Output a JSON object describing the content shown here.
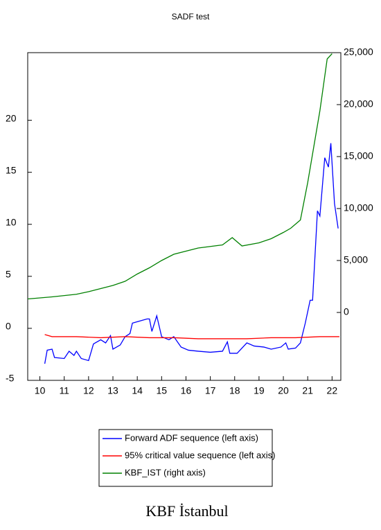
{
  "chart_data": {
    "type": "line",
    "title": "SADF test",
    "caption": "KBF İstanbul",
    "xlim": [
      2010,
      2022.86
    ],
    "xticks": [
      {
        "value": 2010.5,
        "label": "10"
      },
      {
        "value": 2011.5,
        "label": "11"
      },
      {
        "value": 2012.5,
        "label": "12"
      },
      {
        "value": 2013.5,
        "label": "13"
      },
      {
        "value": 2014.5,
        "label": "14"
      },
      {
        "value": 2015.5,
        "label": "15"
      },
      {
        "value": 2016.5,
        "label": "16"
      },
      {
        "value": 2017.5,
        "label": "17"
      },
      {
        "value": 2018.5,
        "label": "18"
      },
      {
        "value": 2019.5,
        "label": "19"
      },
      {
        "value": 2020.5,
        "label": "20"
      },
      {
        "value": 2021.5,
        "label": "21"
      },
      {
        "value": 2022.5,
        "label": "22"
      }
    ],
    "ylim": [
      -5,
      26.5
    ],
    "yticks": [
      -5,
      0,
      5,
      10,
      15,
      20
    ],
    "y2lim": [
      -6533,
      25000
    ],
    "y2ticks": [
      0,
      {
        "value": 5000,
        "label": "5,000"
      },
      {
        "value": 10000,
        "label": "10,000"
      },
      {
        "value": 15000,
        "label": "15,000"
      },
      {
        "value": 20000,
        "label": "20,000"
      },
      {
        "value": 25000,
        "label": "25,000"
      }
    ],
    "legend": "bottom",
    "series": [
      {
        "name": "Forward ADF sequence (left axis)",
        "color": "#0000ff",
        "x": [
          2010.7,
          2010.8,
          2011.0,
          2011.1,
          2011.5,
          2011.7,
          2011.9,
          2012.0,
          2012.2,
          2012.5,
          2012.7,
          2013.0,
          2013.2,
          2013.4,
          2013.5,
          2013.8,
          2014.0,
          2014.2,
          2014.3,
          2014.6,
          2014.9,
          2015.0,
          2015.1,
          2015.3,
          2015.5,
          2015.8,
          2016.0,
          2016.3,
          2016.6,
          2017.0,
          2017.5,
          2018.0,
          2018.2,
          2018.3,
          2018.6,
          2019.0,
          2019.3,
          2019.7,
          2020.0,
          2020.4,
          2020.6,
          2020.7,
          2021.0,
          2021.2,
          2021.4,
          2021.6,
          2021.7,
          2021.9,
          2022.0,
          2022.2,
          2022.35,
          2022.45,
          2022.6,
          2022.75
        ],
        "values": [
          -3.4,
          -2.1,
          -2.0,
          -2.8,
          -2.9,
          -2.2,
          -2.6,
          -2.2,
          -2.9,
          -3.1,
          -1.5,
          -1.1,
          -1.4,
          -0.7,
          -2.0,
          -1.6,
          -0.8,
          -0.5,
          0.5,
          0.7,
          0.9,
          0.9,
          -0.3,
          1.2,
          -0.8,
          -1.1,
          -0.8,
          -1.8,
          -2.1,
          -2.2,
          -2.3,
          -2.2,
          -1.3,
          -2.4,
          -2.4,
          -1.4,
          -1.7,
          -1.8,
          -2.0,
          -1.8,
          -1.4,
          -2.0,
          -1.9,
          -1.4,
          0.5,
          2.7,
          2.7,
          11.3,
          10.8,
          16.4,
          15.5,
          17.8,
          12.0,
          9.6
        ]
      },
      {
        "name": "95% critical value sequence (left axis)",
        "color": "#ff0000",
        "x": [
          2010.7,
          2011.0,
          2012.0,
          2013.0,
          2014.0,
          2015.0,
          2016.0,
          2017.0,
          2018.0,
          2019.0,
          2020.0,
          2021.0,
          2022.0,
          2022.8
        ],
        "values": [
          -0.6,
          -0.8,
          -0.8,
          -0.9,
          -0.8,
          -0.9,
          -0.9,
          -1.0,
          -1.0,
          -1.0,
          -0.9,
          -0.9,
          -0.8,
          -0.8
        ]
      },
      {
        "name": "KBF_IST (right axis)",
        "color": "#008000",
        "axis": "y2",
        "x": [
          2010.0,
          2011.0,
          2012.0,
          2012.5,
          2013.0,
          2013.5,
          2014.0,
          2014.5,
          2015.0,
          2015.5,
          2016.0,
          2017.0,
          2018.0,
          2018.4,
          2018.8,
          2019.5,
          2020.0,
          2020.5,
          2020.8,
          2021.2,
          2021.5,
          2022.0,
          2022.3,
          2022.5
        ],
        "values": [
          1300,
          1500,
          1750,
          2000,
          2300,
          2600,
          3000,
          3700,
          4300,
          5000,
          5600,
          6200,
          6500,
          7200,
          6400,
          6700,
          7100,
          7700,
          8100,
          8900,
          12500,
          19400,
          24400,
          24900
        ]
      }
    ]
  }
}
